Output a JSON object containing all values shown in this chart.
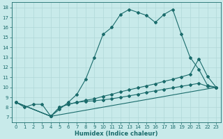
{
  "xlabel": "Humidex (Indice chaleur)",
  "bg_color": "#c8eaea",
  "grid_color": "#b0d8d8",
  "line_color": "#1a6b6b",
  "xlim": [
    -0.5,
    23.5
  ],
  "ylim": [
    6.5,
    18.5
  ],
  "xticks": [
    0,
    1,
    2,
    3,
    4,
    5,
    6,
    7,
    8,
    9,
    10,
    11,
    12,
    13,
    14,
    15,
    16,
    17,
    18,
    19,
    20,
    21,
    22,
    23
  ],
  "yticks": [
    7,
    8,
    9,
    10,
    11,
    12,
    13,
    14,
    15,
    16,
    17,
    18
  ],
  "line1_x": [
    0,
    1,
    2,
    3,
    4,
    5,
    6,
    7,
    8,
    9,
    10,
    11,
    12,
    13,
    14,
    15,
    16,
    17,
    18,
    19,
    20,
    21,
    22,
    23
  ],
  "line1_y": [
    8.5,
    8.0,
    8.3,
    8.3,
    7.1,
    7.8,
    8.5,
    9.3,
    10.8,
    13.0,
    15.3,
    16.0,
    17.3,
    17.8,
    17.5,
    17.2,
    16.5,
    17.3,
    17.8,
    15.3,
    13.0,
    11.8,
    10.2,
    10.0
  ],
  "line2_x": [
    0,
    4,
    23
  ],
  "line2_y": [
    8.5,
    7.1,
    10.0
  ],
  "line3_x": [
    0,
    4,
    5,
    6,
    7,
    8,
    9,
    10,
    11,
    12,
    13,
    14,
    15,
    16,
    17,
    18,
    19,
    20,
    21,
    22,
    23
  ],
  "line3_y": [
    8.5,
    7.1,
    8.0,
    8.3,
    8.5,
    8.7,
    8.85,
    9.1,
    9.3,
    9.55,
    9.75,
    9.95,
    10.15,
    10.35,
    10.6,
    10.8,
    11.05,
    11.3,
    12.85,
    11.1,
    10.0
  ],
  "line4_x": [
    0,
    4,
    5,
    6,
    7,
    8,
    9,
    10,
    11,
    12,
    13,
    14,
    15,
    16,
    17,
    18,
    19,
    20,
    21,
    22,
    23
  ],
  "line4_y": [
    8.5,
    7.1,
    8.0,
    8.3,
    8.5,
    8.6,
    8.65,
    8.75,
    8.85,
    9.0,
    9.15,
    9.3,
    9.5,
    9.65,
    9.8,
    9.95,
    10.1,
    10.25,
    10.4,
    10.1,
    10.0
  ]
}
